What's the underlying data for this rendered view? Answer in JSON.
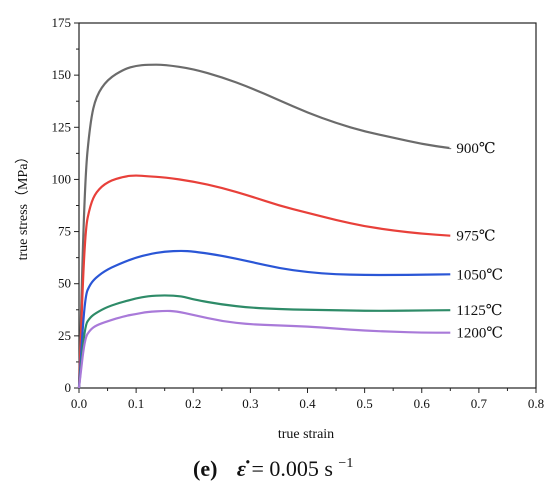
{
  "chart_data": {
    "type": "line",
    "xlabel": "true strain",
    "ylabel": "true stress（MPa）",
    "xlim": [
      0.0,
      0.8
    ],
    "ylim": [
      0,
      175
    ],
    "xticks": [
      "0.0",
      "0.1",
      "0.2",
      "0.3",
      "0.4",
      "0.5",
      "0.6",
      "0.7",
      "0.8"
    ],
    "yticks": [
      "0",
      "25",
      "50",
      "75",
      "100",
      "125",
      "150",
      "175"
    ],
    "grid": false,
    "series": [
      {
        "name": "900℃",
        "color": "#6b6b6b",
        "x": [
          0,
          0.01,
          0.02,
          0.03,
          0.05,
          0.08,
          0.1,
          0.12,
          0.15,
          0.2,
          0.25,
          0.3,
          0.35,
          0.4,
          0.45,
          0.5,
          0.55,
          0.6,
          0.65
        ],
        "y": [
          0,
          100,
          128,
          140,
          148,
          153,
          154.5,
          155,
          155,
          153,
          149,
          144,
          138,
          132,
          127,
          123,
          120,
          117,
          115
        ]
      },
      {
        "name": "975℃",
        "color": "#e8403a",
        "x": [
          0,
          0.01,
          0.02,
          0.03,
          0.05,
          0.08,
          0.1,
          0.12,
          0.15,
          0.2,
          0.25,
          0.3,
          0.35,
          0.4,
          0.45,
          0.5,
          0.55,
          0.6,
          0.65
        ],
        "y": [
          0,
          75,
          88,
          94,
          99,
          101.5,
          102,
          101.5,
          101,
          99,
          96,
          92,
          87.5,
          84,
          80.5,
          77.5,
          75.5,
          74,
          73
        ]
      },
      {
        "name": "1050℃",
        "color": "#2a56d6",
        "x": [
          0,
          0.01,
          0.02,
          0.03,
          0.05,
          0.08,
          0.1,
          0.12,
          0.15,
          0.18,
          0.2,
          0.25,
          0.3,
          0.35,
          0.4,
          0.45,
          0.5,
          0.55,
          0.6,
          0.65
        ],
        "y": [
          0,
          44,
          50,
          53,
          57,
          60.5,
          62.5,
          64,
          65.5,
          65.8,
          65.5,
          63.5,
          60.5,
          57.5,
          55.5,
          54.5,
          54.2,
          54.2,
          54.3,
          54.5
        ]
      },
      {
        "name": "1125℃",
        "color": "#2e8b68",
        "x": [
          0,
          0.01,
          0.02,
          0.03,
          0.05,
          0.08,
          0.1,
          0.12,
          0.15,
          0.18,
          0.2,
          0.25,
          0.3,
          0.35,
          0.4,
          0.45,
          0.5,
          0.55,
          0.6,
          0.65
        ],
        "y": [
          0,
          30,
          34,
          36,
          39,
          41.5,
          43,
          44,
          44.5,
          44,
          42.5,
          40,
          38.5,
          37.8,
          37.5,
          37.3,
          37,
          37,
          37.2,
          37.3
        ]
      },
      {
        "name": "1200℃",
        "color": "#a97ad9",
        "x": [
          0,
          0.01,
          0.02,
          0.03,
          0.05,
          0.08,
          0.1,
          0.12,
          0.15,
          0.17,
          0.2,
          0.25,
          0.3,
          0.35,
          0.4,
          0.45,
          0.5,
          0.55,
          0.6,
          0.65
        ],
        "y": [
          0,
          24,
          28,
          30,
          32,
          34.5,
          35.5,
          36.5,
          37,
          36.8,
          35,
          32,
          30.5,
          30,
          29.5,
          28.5,
          27.5,
          27,
          26.5,
          26.5
        ]
      }
    ]
  },
  "caption": {
    "label": "(e)",
    "symbol": "ε̇",
    "equals": " = 0.005 s",
    "exponent": "−1"
  }
}
